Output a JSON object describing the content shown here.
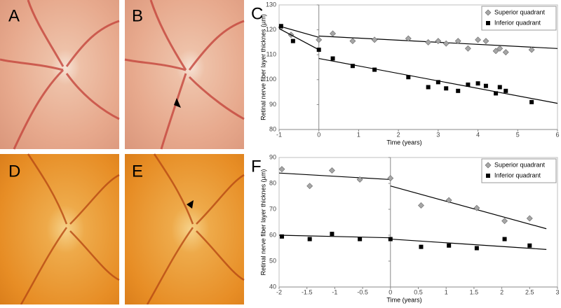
{
  "photo_panels": [
    "A",
    "B",
    "D",
    "E"
  ],
  "chart_data": [
    {
      "type": "scatter",
      "panel_label": "C",
      "ylabel": "Retinal nerve fiber layer thicknes (µm)",
      "xlabel": "Time (years)",
      "xlim": [
        -1,
        6
      ],
      "xticks": [
        -1,
        0,
        1,
        2,
        3,
        4,
        5,
        6
      ],
      "ylim": [
        80,
        130
      ],
      "yticks": [
        80,
        90,
        100,
        110,
        120,
        130
      ],
      "legend": "upper right",
      "series": [
        {
          "name": "Superior quadrant",
          "color": "#a6a6a6",
          "marker": "diamond",
          "x": [
            -0.95,
            -0.7,
            0,
            0.35,
            0.85,
            1.4,
            2.25,
            2.75,
            3,
            3.2,
            3.5,
            3.75,
            4,
            4.2,
            4.45,
            4.55,
            4.7,
            5.35
          ],
          "values": [
            121,
            118,
            116,
            118.5,
            115.5,
            116,
            116.5,
            115,
            115.5,
            114.5,
            115.5,
            112.5,
            116,
            115.5,
            111.5,
            112.5,
            111,
            112
          ],
          "trends": [
            {
              "x": [
                -1,
                0
              ],
              "y": [
                121.5,
                117
              ]
            },
            {
              "x": [
                0,
                6
              ],
              "y": [
                117.5,
                112.5
              ]
            }
          ]
        },
        {
          "name": "Inferior quadrant",
          "color": "#000000",
          "marker": "square",
          "x": [
            -0.95,
            -0.65,
            0,
            0.35,
            0.85,
            1.4,
            2.25,
            2.75,
            3,
            3.2,
            3.5,
            3.75,
            4,
            4.2,
            4.45,
            4.55,
            4.7,
            5.35
          ],
          "values": [
            121.5,
            115.5,
            112,
            108.5,
            105.5,
            104,
            101,
            97,
            99,
            96.5,
            95.5,
            98,
            98.5,
            97.5,
            94.5,
            97,
            95.5,
            91
          ],
          "trends": [
            {
              "x": [
                -1,
                0
              ],
              "y": [
                120.5,
                112
              ]
            },
            {
              "x": [
                0,
                6
              ],
              "y": [
                108.5,
                90.5
              ]
            }
          ]
        }
      ]
    },
    {
      "type": "scatter",
      "panel_label": "F",
      "ylabel": "Retinal nerve fiber layer thicknes (µm)",
      "xlabel": "Time (years)",
      "xlim": [
        -2,
        3
      ],
      "xticks": [
        -2,
        -1.5,
        -1,
        -0.5,
        0,
        0.5,
        1,
        1.5,
        2,
        2.5,
        3
      ],
      "ylim": [
        40,
        90
      ],
      "yticks": [
        40,
        50,
        60,
        70,
        80,
        90
      ],
      "legend": "upper right",
      "series": [
        {
          "name": "Superior quadrant",
          "color": "#a6a6a6",
          "marker": "diamond",
          "x": [
            -1.95,
            -1.45,
            -1.05,
            -0.55,
            0,
            0.55,
            1.05,
            1.55,
            2.05,
            2.5
          ],
          "values": [
            85.5,
            79,
            85,
            81.5,
            82,
            71.5,
            73.5,
            70.5,
            65.5,
            66.5
          ],
          "trends": [
            {
              "x": [
                -2,
                0
              ],
              "y": [
                84,
                81.5
              ]
            },
            {
              "x": [
                0,
                2.8
              ],
              "y": [
                79,
                62.5
              ]
            }
          ]
        },
        {
          "name": "Inferior quadrant",
          "color": "#000000",
          "marker": "square",
          "x": [
            -1.95,
            -1.45,
            -1.05,
            -0.55,
            0,
            0.55,
            1.05,
            1.55,
            2.05,
            2.5
          ],
          "values": [
            59.5,
            58.5,
            60.5,
            58.5,
            58.5,
            55.5,
            56,
            55,
            58.5,
            56
          ],
          "trends": [
            {
              "x": [
                -2,
                0
              ],
              "y": [
                60,
                59
              ]
            },
            {
              "x": [
                0,
                2.8
              ],
              "y": [
                58.5,
                54.5
              ]
            }
          ]
        }
      ]
    }
  ]
}
